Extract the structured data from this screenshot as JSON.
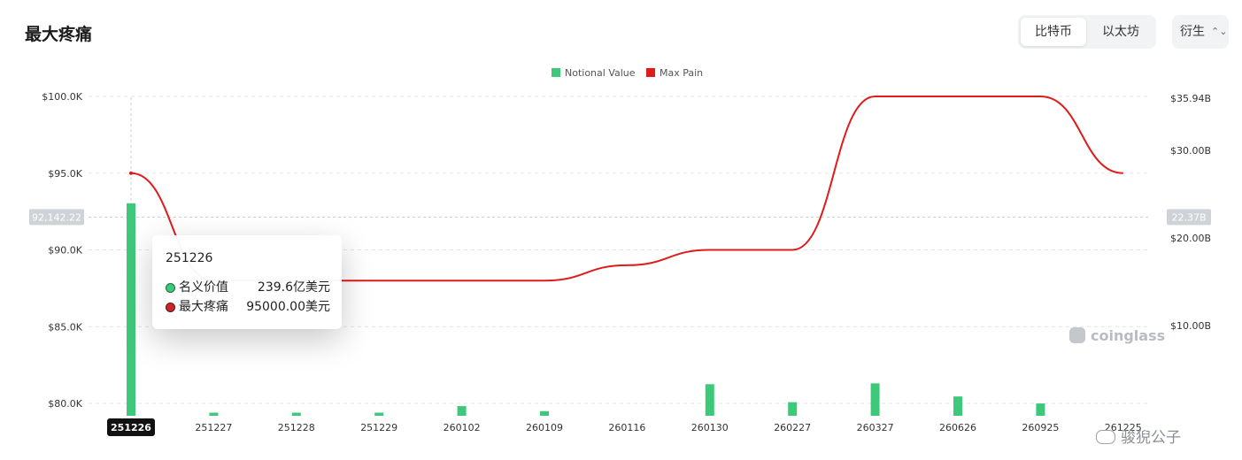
{
  "page": {
    "title": "最大疼痛"
  },
  "coin_tabs": [
    {
      "label": "比特币",
      "active": true
    },
    {
      "label": "以太坊",
      "active": false
    }
  ],
  "type_select": {
    "value": "衍生",
    "icon": "chevron-updown-icon"
  },
  "colors": {
    "notional": "#3ec97a",
    "maxpain": "#e01b1b",
    "grid": "#e4e6ea"
  },
  "chart_data": {
    "type": "bar+line",
    "legend": [
      "Notional Value",
      "Max Pain"
    ],
    "legend_position": "top-center",
    "categories": [
      "251226",
      "251227",
      "251228",
      "251229",
      "260102",
      "260109",
      "260116",
      "260130",
      "260227",
      "260327",
      "260626",
      "260925",
      "261225"
    ],
    "series": [
      {
        "name": "Notional Value",
        "type": "bar",
        "axis": "right",
        "unit": "B",
        "values": [
          23.96,
          0.05,
          0.05,
          0.05,
          0.8,
          0.22,
          0,
          3.3,
          1.25,
          3.4,
          1.9,
          1.1,
          0
        ]
      },
      {
        "name": "Max Pain",
        "type": "line",
        "axis": "left",
        "unit": "K",
        "values": [
          95.0,
          88.0,
          88.0,
          88.0,
          88.0,
          88.0,
          89.0,
          90.0,
          90.0,
          100.0,
          100.0,
          100.0,
          95.0
        ]
      }
    ],
    "y_left": {
      "ticks": [
        "$80.0K",
        "$85.0K",
        "$90.0K",
        "$95.0K",
        "$100.0K"
      ],
      "tick_values": [
        80,
        85,
        90,
        95,
        100
      ]
    },
    "y_right": {
      "ticks": [
        "$10.00B",
        "$20.00B",
        "$30.00B",
        "$35.94B"
      ],
      "tick_values": [
        10,
        20,
        30,
        35.94
      ]
    },
    "crosshair": {
      "category": "251226",
      "left_label": "92,142.22",
      "right_label": "22.37B"
    },
    "grid": true
  },
  "tooltip": {
    "title": "251226",
    "rows": [
      {
        "label": "名义价值",
        "value": "239.6亿美元"
      },
      {
        "label": "最大疼痛",
        "value": "95000.00美元"
      }
    ]
  },
  "watermarks": {
    "brand": "coinglass",
    "author": "骏猊公子"
  }
}
